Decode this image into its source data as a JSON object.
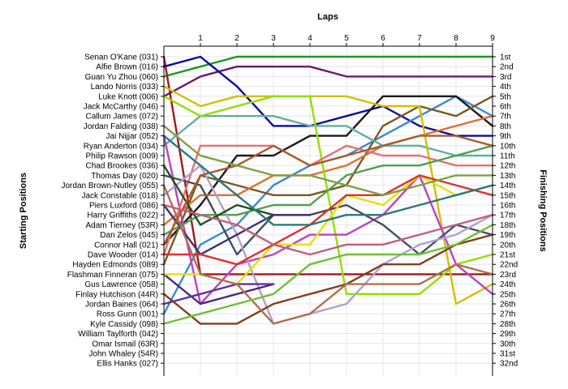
{
  "chart_data": {
    "type": "line",
    "title": "Laps",
    "ylabel_left": "Starting Positions",
    "ylabel_right": "Finishing Positions",
    "x_ticks": [
      "1",
      "2",
      "3",
      "4",
      "5",
      "6",
      "7",
      "8",
      "9"
    ],
    "xlim": [
      0,
      9
    ],
    "ylim": [
      1,
      32
    ],
    "grid": true,
    "starting_labels": [
      "Senan O'Kane (031)",
      "Alfie Brown (016)",
      "Guan Yu Zhou (060)",
      "Lando Norris (033)",
      "Luke Knott (006)",
      "Jack McCarthy (046)",
      "Callum James (072)",
      "Jordan Falding (038)",
      "Jai Nijjar (052)",
      "Ryan Anderton (034)",
      "Philip Rawson (009)",
      "Chad Brookes (036)",
      "Thomas Day (020)",
      "Jordan Brown-Nutley (055)",
      "Jack Constable (018)",
      "Piers Luxford (086)",
      "Harry Griffiths (022)",
      "Adam Tierney (53R)",
      "Dan Zelos (045)",
      "Connor Hall (021)",
      "Dave Wooder (014)",
      "Hayden Edmonds (089)",
      "Flashman Finneran (075)",
      "Gus Lawrence (058)",
      "Finlay Hutchison (44R)",
      "Jordan Baines (064)",
      "Ross Gunn (001)",
      "Kyle Cassidy (098)",
      "William Taylforth (042)",
      "Omar Ismail (63R)",
      "John Whaley (54R)",
      "Ellis Hanks (027)"
    ],
    "finishing_labels": [
      "1st",
      "2nd",
      "3rd",
      "4th",
      "5th",
      "6th",
      "7th",
      "8th",
      "9th",
      "10th",
      "11th",
      "12th",
      "13th",
      "14th",
      "15th",
      "16th",
      "17th",
      "18th",
      "19th",
      "20th",
      "21st",
      "22nd",
      "23rd",
      "24th",
      "25th",
      "26th",
      "27th",
      "28th",
      "29th",
      "30th",
      "31st",
      "32nd"
    ],
    "series": [
      {
        "color": "#1a9a1a",
        "values": [
          3,
          2,
          1,
          1,
          1,
          1,
          1,
          1,
          1,
          1
        ]
      },
      {
        "color": "#a01818",
        "values": [
          1,
          23,
          23,
          23,
          23,
          23,
          23,
          23,
          23,
          23
        ]
      },
      {
        "color": "#6a1a6a",
        "values": [
          5,
          3,
          2,
          2,
          2,
          3,
          3,
          3,
          3,
          3
        ]
      },
      {
        "color": "#0a0aa0",
        "values": [
          2,
          1,
          4,
          8,
          8,
          7,
          6,
          8,
          9,
          9
        ]
      },
      {
        "color": "#3a8ad0",
        "values": [
          27,
          20,
          18,
          14,
          12,
          11,
          9,
          7,
          5,
          7
        ]
      },
      {
        "color": "#1a1a1a",
        "values": [
          20,
          16,
          11,
          11,
          9,
          9,
          5,
          5,
          5,
          8
        ]
      },
      {
        "color": "#7a5a20",
        "values": [
          22,
          13,
          14,
          15,
          15,
          14,
          8,
          6,
          7,
          5
        ]
      },
      {
        "color": "#e07030",
        "values": [
          18,
          15,
          15,
          13,
          13,
          12,
          10,
          9,
          8,
          7
        ]
      },
      {
        "color": "#60b0a0",
        "values": [
          10,
          7,
          7,
          7,
          8,
          8,
          10,
          10,
          11,
          11
        ]
      },
      {
        "color": "#d0c000",
        "values": [
          4,
          6,
          5,
          5,
          5,
          5,
          6,
          6,
          26,
          24
        ]
      },
      {
        "color": "#90e000",
        "values": [
          5,
          7,
          6,
          5,
          5,
          25,
          25,
          25,
          22,
          21
        ]
      },
      {
        "color": "#c040c0",
        "values": [
          9,
          26,
          22,
          21,
          19,
          19,
          17,
          13,
          22,
          25
        ]
      },
      {
        "color": "#e87070",
        "values": [
          21,
          10,
          10,
          10,
          12,
          10,
          11,
          11,
          12,
          12
        ]
      },
      {
        "color": "#405060",
        "values": [
          13,
          14,
          21,
          17,
          17,
          16,
          18,
          21,
          18,
          19
        ]
      },
      {
        "color": "#50a050",
        "values": [
          19,
          17,
          17,
          16,
          16,
          13,
          12,
          12,
          11,
          10
        ]
      },
      {
        "color": "#b0a0d0",
        "values": [
          15,
          12,
          19,
          28,
          27,
          26,
          22,
          20,
          19,
          17
        ]
      },
      {
        "color": "#4a2a7a",
        "values": [
          23,
          26,
          25,
          24,
          null,
          null,
          null,
          null,
          null,
          null
        ]
      },
      {
        "color": "#205020",
        "values": [
          12,
          18,
          16,
          17,
          17,
          null,
          null,
          null,
          null,
          null
        ]
      },
      {
        "color": "#403070",
        "values": [
          16,
          21,
          19,
          17,
          17,
          null,
          null,
          null,
          null,
          null
        ]
      },
      {
        "color": "#e8e000",
        "values": [
          23,
          23,
          24,
          20,
          20,
          15,
          16,
          13,
          15,
          14
        ]
      },
      {
        "color": "#e03030",
        "values": [
          21,
          21,
          22,
          20,
          18,
          15,
          15,
          13,
          14,
          15
        ]
      },
      {
        "color": "#6030a0",
        "values": [
          26,
          25,
          24,
          24,
          null,
          null,
          null,
          null,
          null,
          null
        ]
      },
      {
        "color": "#804020",
        "values": [
          25,
          28,
          28,
          26,
          25,
          24,
          22,
          22,
          20,
          19
        ]
      },
      {
        "color": "#b07050",
        "values": [
          14,
          23,
          24,
          28,
          27,
          24,
          24,
          24,
          22,
          23
        ]
      },
      {
        "color": "#70c030",
        "values": [
          28,
          27,
          26,
          25,
          22,
          21,
          21,
          21,
          20,
          18
        ]
      },
      {
        "color": "#a85a30",
        "values": [
          20,
          13,
          12,
          10,
          12,
          11,
          10,
          9,
          9,
          10
        ]
      },
      {
        "color": "#2a7a7a",
        "values": [
          9,
          12,
          15,
          18,
          18,
          17,
          17,
          16,
          15,
          14
        ]
      },
      {
        "color": "#c06080",
        "values": [
          16,
          17,
          18,
          20,
          21,
          20,
          20,
          19,
          18,
          17
        ]
      },
      {
        "color": "#80a040",
        "values": [
          8,
          11,
          12,
          13,
          13,
          14,
          15,
          14,
          13,
          13
        ]
      }
    ]
  }
}
